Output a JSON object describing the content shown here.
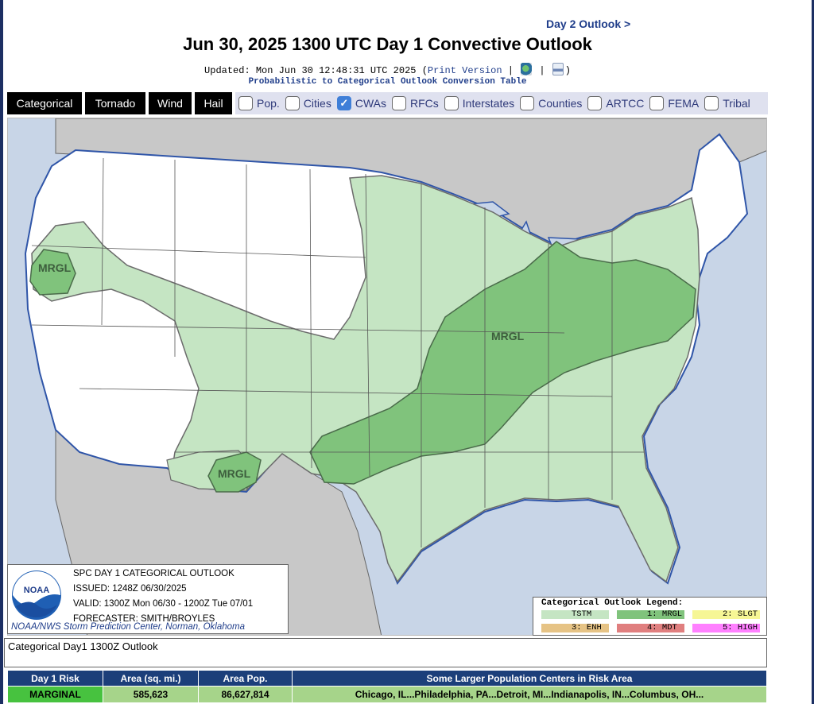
{
  "header": {
    "day2_link": "Day 2 Outlook >",
    "title": "Jun 30, 2025 1300 UTC Day 1 Convective Outlook",
    "updated_prefix": "Updated: Mon Jun 30 12:48:31 UTC 2025 (",
    "print_version": "Print Version",
    "separator": "|",
    "updated_suffix": ")",
    "conversion_link": "Probabilistic to Categorical Outlook Conversion Table"
  },
  "tabs": [
    {
      "label": "Categorical"
    },
    {
      "label": "Tornado"
    },
    {
      "label": "Wind"
    },
    {
      "label": "Hail"
    }
  ],
  "overlays": [
    {
      "label": "Pop.",
      "checked": false
    },
    {
      "label": "Cities",
      "checked": false
    },
    {
      "label": "CWAs",
      "checked": true
    },
    {
      "label": "RFCs",
      "checked": false
    },
    {
      "label": "Interstates",
      "checked": false
    },
    {
      "label": "Counties",
      "checked": false
    },
    {
      "label": "ARTCC",
      "checked": false
    },
    {
      "label": "FEMA",
      "checked": false
    },
    {
      "label": "Tribal",
      "checked": false
    }
  ],
  "map": {
    "risk_labels": [
      "MRGL",
      "MRGL",
      "MRGL"
    ],
    "colors": {
      "water": "#c8d5e7",
      "land_outside": "#c8c8c8",
      "us_land": "#ffffff",
      "tstm": "#c5e5c3",
      "mrgl": "#80c37c",
      "border": "#555555",
      "cwa_line": "#2f55a8"
    }
  },
  "info_box": {
    "lines": [
      "SPC DAY 1 CATEGORICAL OUTLOOK",
      "ISSUED: 1248Z 06/30/2025",
      "VALID: 1300Z Mon 06/30 - 1200Z Tue 07/01",
      "FORECASTER: SMITH/BROYLES"
    ],
    "footer": "NOAA/NWS Storm Prediction Center, Norman, Oklahoma",
    "logo_text": "NOAA"
  },
  "legend": {
    "title": "Categorical Outlook Legend:",
    "items": [
      {
        "label": "TSTM",
        "color": "#c5e5c3"
      },
      {
        "label": "1: MRGL",
        "color": "#80c37c"
      },
      {
        "label": "2: SLGT",
        "color": "#f6f695"
      },
      {
        "label": "3: ENH",
        "color": "#e6c385"
      },
      {
        "label": "4: MDT",
        "color": "#e07f7f"
      },
      {
        "label": "5: HIGH",
        "color": "#ff80ff"
      }
    ]
  },
  "caption": "Categorical Day1 1300Z Outlook",
  "risk_table": {
    "headers": [
      "Day 1 Risk",
      "Area (sq. mi.)",
      "Area Pop.",
      "Some Larger Population Centers in Risk Area"
    ],
    "rows": [
      [
        "MARGINAL",
        "585,623",
        "86,627,814",
        "Chicago, IL...Philadelphia, PA...Detroit, MI...Indianapolis, IN...Columbus, OH..."
      ]
    ]
  }
}
